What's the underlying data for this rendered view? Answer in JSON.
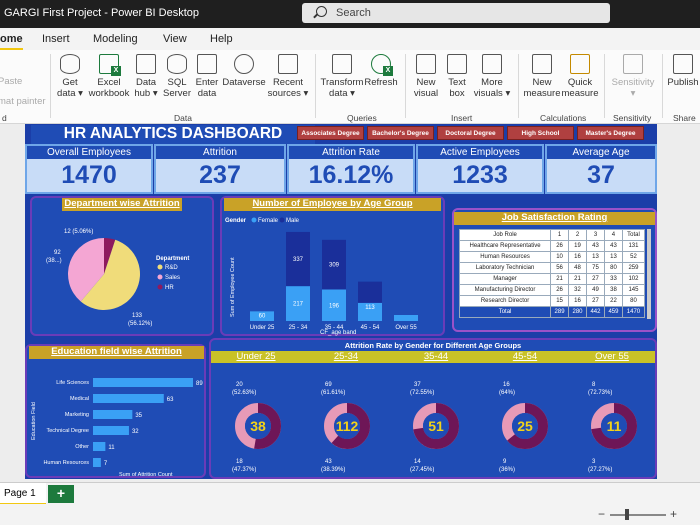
{
  "window": {
    "title": "GARGI First Project - Power BI Desktop",
    "search_placeholder": "Search"
  },
  "menu": [
    "ome",
    "Insert",
    "Modeling",
    "View",
    "Help"
  ],
  "ribbon": {
    "clipped_left": [
      "Paste",
      "mat painter"
    ],
    "buttons": [
      {
        "label": "Get data ▾",
        "icon": "database-icon"
      },
      {
        "label": "Excel workbook",
        "icon": "excel-icon"
      },
      {
        "label": "Data hub ▾",
        "icon": "data-hub-icon"
      },
      {
        "label": "SQL Server",
        "icon": "sql-server-icon"
      },
      {
        "label": "Enter data",
        "icon": "table-icon"
      },
      {
        "label": "Dataverse",
        "icon": "dataverse-icon"
      },
      {
        "label": "Recent sources ▾",
        "icon": "recent-icon"
      },
      {
        "label": "Transform data ▾",
        "icon": "transform-icon"
      },
      {
        "label": "Refresh",
        "icon": "refresh-icon"
      },
      {
        "label": "New visual",
        "icon": "chart-icon"
      },
      {
        "label": "Text box",
        "icon": "textbox-icon"
      },
      {
        "label": "More visuals ▾",
        "icon": "more-visuals-icon"
      },
      {
        "label": "New measure",
        "icon": "calculator-icon"
      },
      {
        "label": "Quick measure",
        "icon": "quick-measure-icon"
      },
      {
        "label": "Sensitivity ▾",
        "icon": "sensitivity-icon"
      },
      {
        "label": "Publish",
        "icon": "publish-icon"
      }
    ],
    "groups": [
      "d",
      "Data",
      "Queries",
      "Insert",
      "Calculations",
      "Sensitivity",
      "Share"
    ]
  },
  "dashboard": {
    "title": "HR ANALYTICS DASHBOARD",
    "slicer": [
      "Associates Degree",
      "Bachelor's Degree",
      "Doctoral Degree",
      "High School",
      "Master's Degree"
    ],
    "kpis": [
      {
        "label": "Overall Employees",
        "value": "1470"
      },
      {
        "label": "Attrition",
        "value": "237"
      },
      {
        "label": "Attrition Rate",
        "value": "16.12%"
      },
      {
        "label": "Active Employees",
        "value": "1233"
      },
      {
        "label": "Average Age",
        "value": "37"
      }
    ],
    "dept_attrition": {
      "title": "Department wise Attrition",
      "legend_title": "Department",
      "slices": [
        {
          "name": "R&D",
          "value": 133,
          "label": "133",
          "pct": "(56.12%)",
          "color": "#f0dc7a"
        },
        {
          "name": "Sales",
          "value": 92,
          "label": "92",
          "pct": "(38...)",
          "color": "#f4a6d3"
        },
        {
          "name": "HR",
          "value": 12,
          "label": "12 (5.06%)",
          "pct": "",
          "color": "#8e1a5e"
        }
      ]
    },
    "age_group": {
      "title": "Number of Employee by Age Group",
      "legend_title": "Gender",
      "legend": [
        "Female",
        "Male"
      ],
      "ylabel": "Sum of Employee Count",
      "xlabel": "CF_age band",
      "categories": [
        "Under 25",
        "25 - 34",
        "35 - 44",
        "45 - 54",
        "Over 55"
      ],
      "female": [
        60,
        217,
        196,
        113,
        0
      ],
      "male": [
        0,
        337,
        309,
        132,
        0
      ],
      "female_labels": [
        "60",
        "217",
        "196",
        "113",
        ""
      ],
      "male_labels": [
        "",
        "337",
        "309",
        "",
        ""
      ],
      "colors": {
        "female": "#3aa0f5",
        "male": "#1a2f9a"
      }
    },
    "job_satisfaction": {
      "title": "Job Satisfaction Rating",
      "headers": [
        "Job Role",
        "1",
        "2",
        "3",
        "4",
        "Total"
      ],
      "rows": [
        [
          "Healthcare Representative",
          "26",
          "19",
          "43",
          "43",
          "131"
        ],
        [
          "Human Resources",
          "10",
          "16",
          "13",
          "13",
          "52"
        ],
        [
          "Laboratory Technician",
          "56",
          "48",
          "75",
          "80",
          "259"
        ],
        [
          "Manager",
          "21",
          "21",
          "27",
          "33",
          "102"
        ],
        [
          "Manufacturing Director",
          "26",
          "32",
          "49",
          "38",
          "145"
        ],
        [
          "Research Director",
          "15",
          "16",
          "27",
          "22",
          "80"
        ]
      ],
      "total": [
        "Total",
        "289",
        "280",
        "442",
        "459",
        "1470"
      ]
    },
    "education": {
      "title": "Education field wise Attrition",
      "ylabel": "Education Field",
      "xlabel": "Sum of Attrition Count",
      "categories": [
        "Life Sciences",
        "Medical",
        "Marketing",
        "Technical Degree",
        "Other",
        "Human Resources"
      ],
      "values": [
        89,
        63,
        35,
        32,
        11,
        7
      ]
    },
    "gender_age": {
      "title": "Attrition Rate by Gender for Different Age Groups",
      "groups": [
        {
          "label": "Under 25",
          "total": "38",
          "top": "20",
          "top_pct": "(52.63%)",
          "bot": "18",
          "bot_pct": "(47.37%)",
          "male": 20,
          "female": 18
        },
        {
          "label": "25-34",
          "total": "112",
          "top": "69",
          "top_pct": "(61.61%)",
          "bot": "43",
          "bot_pct": "(38.39%)",
          "male": 69,
          "female": 43
        },
        {
          "label": "35-44",
          "total": "51",
          "top": "37",
          "top_pct": "(72.55%)",
          "bot": "14",
          "bot_pct": "(27.45%)",
          "male": 37,
          "female": 14
        },
        {
          "label": "45-54",
          "total": "25",
          "top": "16",
          "top_pct": "(64%)",
          "bot": "9",
          "bot_pct": "(36%)",
          "male": 16,
          "female": 9
        },
        {
          "label": "Over 55",
          "total": "11",
          "top": "8",
          "top_pct": "(72.73%)",
          "bot": "3",
          "bot_pct": "(27.27%)",
          "male": 8,
          "female": 3
        }
      ],
      "colors": {
        "male": "#6e1657",
        "female": "#e79ab7"
      }
    }
  },
  "pages": {
    "tab": "Page 1",
    "add": "+"
  }
}
